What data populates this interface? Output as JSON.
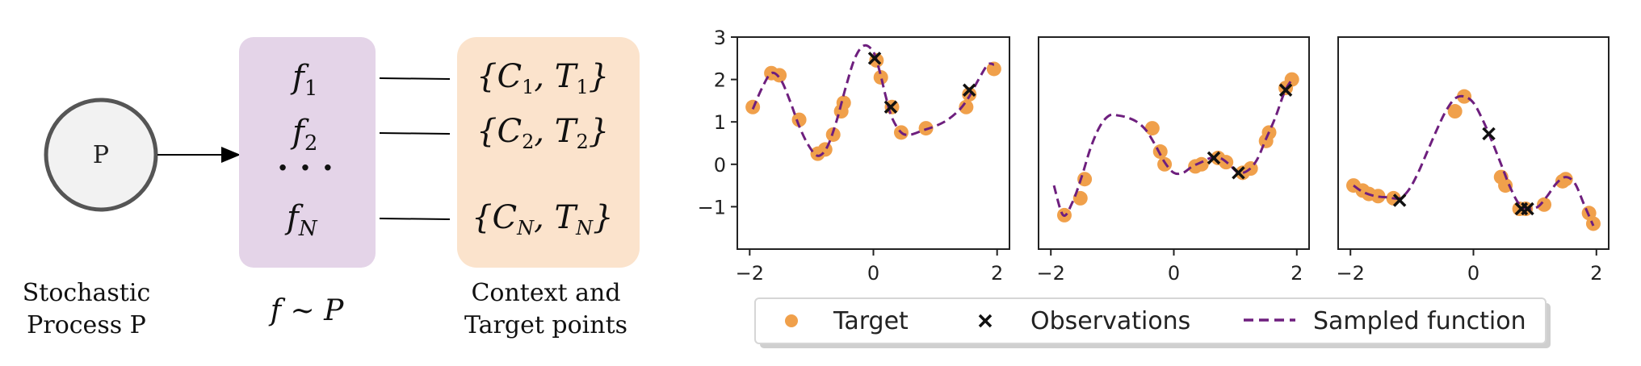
{
  "diagram": {
    "process_circle": {
      "label": "P",
      "caption_line1": "Stochastic",
      "caption_line2": "Process P"
    },
    "function_box": {
      "items": [
        {
          "base": "f",
          "sub": "1"
        },
        {
          "base": "f",
          "sub": "2"
        },
        {
          "base": "f",
          "sub": "N"
        }
      ],
      "dots": "· · ·",
      "caption": "f ∼ P"
    },
    "context_box": {
      "items": [
        {
          "text": "{C",
          "sub1": "1",
          "mid": ", T",
          "sub2": "1",
          "end": "}"
        },
        {
          "text": "{C",
          "sub1": "2",
          "mid": ", T",
          "sub2": "2",
          "end": "}"
        },
        {
          "text": "{C",
          "sub1": "N",
          "mid": ", T",
          "sub2": "N",
          "end": "}"
        }
      ],
      "caption_line1": "Context and",
      "caption_line2": "Target points"
    },
    "colors": {
      "circle_fill": "#f2f2f2",
      "circle_stroke": "#555555",
      "function_box_fill": "#e4d4e8",
      "context_box_fill": "#fbe3cc"
    }
  },
  "chart_data": [
    {
      "type": "scatter",
      "xlim": [
        -2.2,
        2.2
      ],
      "ylim": [
        -2.0,
        3.0
      ],
      "xticks": [
        -2,
        0,
        2
      ],
      "yticks": [
        3,
        2,
        1,
        0,
        -1
      ],
      "sampled_function": [
        [
          -1.95,
          1.3
        ],
        [
          -1.8,
          1.8
        ],
        [
          -1.65,
          2.15
        ],
        [
          -1.5,
          2.0
        ],
        [
          -1.35,
          1.5
        ],
        [
          -1.2,
          0.9
        ],
        [
          -1.05,
          0.45
        ],
        [
          -0.9,
          0.2
        ],
        [
          -0.75,
          0.4
        ],
        [
          -0.6,
          1.0
        ],
        [
          -0.45,
          1.8
        ],
        [
          -0.3,
          2.5
        ],
        [
          -0.15,
          2.8
        ],
        [
          0.0,
          2.65
        ],
        [
          0.1,
          2.2
        ],
        [
          0.2,
          1.6
        ],
        [
          0.3,
          1.1
        ],
        [
          0.45,
          0.75
        ],
        [
          0.6,
          0.7
        ],
        [
          0.8,
          0.8
        ],
        [
          1.0,
          0.9
        ],
        [
          1.2,
          1.05
        ],
        [
          1.4,
          1.3
        ],
        [
          1.55,
          1.6
        ],
        [
          1.7,
          2.0
        ],
        [
          1.85,
          2.35
        ],
        [
          1.95,
          2.35
        ]
      ],
      "targets": [
        [
          -1.95,
          1.35
        ],
        [
          -1.65,
          2.15
        ],
        [
          -1.52,
          2.1
        ],
        [
          -1.2,
          1.05
        ],
        [
          -0.9,
          0.25
        ],
        [
          -0.78,
          0.35
        ],
        [
          -0.65,
          0.7
        ],
        [
          -0.52,
          1.25
        ],
        [
          -0.48,
          1.45
        ],
        [
          0.05,
          2.45
        ],
        [
          0.12,
          2.05
        ],
        [
          0.3,
          1.35
        ],
        [
          0.45,
          0.75
        ],
        [
          0.85,
          0.85
        ],
        [
          1.5,
          1.35
        ],
        [
          1.55,
          1.65
        ],
        [
          1.95,
          2.25
        ]
      ],
      "observations": [
        [
          0.02,
          2.5
        ],
        [
          0.28,
          1.35
        ],
        [
          1.55,
          1.75
        ]
      ]
    },
    {
      "type": "scatter",
      "xlim": [
        -2.2,
        2.2
      ],
      "ylim": [
        -2.0,
        3.0
      ],
      "xticks": [
        -2,
        0,
        2
      ],
      "yticks": [],
      "sampled_function": [
        [
          -1.95,
          -0.5
        ],
        [
          -1.8,
          -1.2
        ],
        [
          -1.65,
          -0.9
        ],
        [
          -1.5,
          -0.3
        ],
        [
          -1.35,
          0.4
        ],
        [
          -1.2,
          0.9
        ],
        [
          -1.05,
          1.15
        ],
        [
          -0.9,
          1.15
        ],
        [
          -0.75,
          1.1
        ],
        [
          -0.6,
          1.0
        ],
        [
          -0.45,
          0.8
        ],
        [
          -0.3,
          0.45
        ],
        [
          -0.15,
          0.05
        ],
        [
          0.0,
          -0.2
        ],
        [
          0.15,
          -0.2
        ],
        [
          0.3,
          -0.05
        ],
        [
          0.45,
          0.05
        ],
        [
          0.6,
          0.15
        ],
        [
          0.75,
          0.15
        ],
        [
          0.9,
          0.0
        ],
        [
          1.05,
          -0.2
        ],
        [
          1.2,
          -0.15
        ],
        [
          1.35,
          0.1
        ],
        [
          1.5,
          0.6
        ],
        [
          1.65,
          1.1
        ],
        [
          1.8,
          1.7
        ],
        [
          1.92,
          2.0
        ]
      ],
      "targets": [
        [
          -1.78,
          -1.2
        ],
        [
          -1.52,
          -0.8
        ],
        [
          -1.45,
          -0.35
        ],
        [
          -0.35,
          0.85
        ],
        [
          -0.22,
          0.3
        ],
        [
          -0.15,
          0.0
        ],
        [
          0.35,
          -0.05
        ],
        [
          0.45,
          0.0
        ],
        [
          0.72,
          0.15
        ],
        [
          0.85,
          0.05
        ],
        [
          1.12,
          -0.2
        ],
        [
          1.25,
          -0.1
        ],
        [
          1.5,
          0.55
        ],
        [
          1.55,
          0.75
        ],
        [
          1.82,
          1.8
        ],
        [
          1.92,
          2.0
        ]
      ],
      "observations": [
        [
          0.65,
          0.15
        ],
        [
          1.05,
          -0.2
        ],
        [
          1.82,
          1.75
        ]
      ]
    },
    {
      "type": "scatter",
      "xlim": [
        -2.2,
        2.2
      ],
      "ylim": [
        -2.0,
        3.0
      ],
      "xticks": [
        -2,
        0,
        2
      ],
      "yticks": [],
      "sampled_function": [
        [
          -1.95,
          -0.5
        ],
        [
          -1.8,
          -0.65
        ],
        [
          -1.6,
          -0.75
        ],
        [
          -1.4,
          -0.78
        ],
        [
          -1.2,
          -0.8
        ],
        [
          -1.05,
          -0.6
        ],
        [
          -0.9,
          -0.2
        ],
        [
          -0.75,
          0.3
        ],
        [
          -0.6,
          0.8
        ],
        [
          -0.45,
          1.25
        ],
        [
          -0.3,
          1.55
        ],
        [
          -0.15,
          1.6
        ],
        [
          0.0,
          1.45
        ],
        [
          0.15,
          1.05
        ],
        [
          0.3,
          0.55
        ],
        [
          0.45,
          0.0
        ],
        [
          0.6,
          -0.55
        ],
        [
          0.75,
          -0.95
        ],
        [
          0.9,
          -1.05
        ],
        [
          1.05,
          -1.0
        ],
        [
          1.2,
          -0.75
        ],
        [
          1.35,
          -0.45
        ],
        [
          1.5,
          -0.3
        ],
        [
          1.65,
          -0.45
        ],
        [
          1.8,
          -0.95
        ],
        [
          1.95,
          -1.45
        ]
      ],
      "targets": [
        [
          -1.95,
          -0.5
        ],
        [
          -1.8,
          -0.62
        ],
        [
          -1.7,
          -0.7
        ],
        [
          -1.55,
          -0.75
        ],
        [
          -1.3,
          -0.8
        ],
        [
          -0.3,
          1.25
        ],
        [
          -0.15,
          1.6
        ],
        [
          0.45,
          -0.3
        ],
        [
          0.52,
          -0.5
        ],
        [
          0.75,
          -1.05
        ],
        [
          0.85,
          -1.05
        ],
        [
          1.15,
          -0.95
        ],
        [
          1.45,
          -0.4
        ],
        [
          1.5,
          -0.35
        ],
        [
          1.88,
          -1.15
        ],
        [
          1.95,
          -1.4
        ]
      ],
      "observations": [
        [
          -1.2,
          -0.85
        ],
        [
          0.25,
          0.72
        ],
        [
          0.78,
          -1.05
        ],
        [
          0.88,
          -1.05
        ]
      ]
    }
  ],
  "legend": {
    "items": [
      {
        "label": "Target",
        "marker": "circle"
      },
      {
        "label": "Observations",
        "marker": "x"
      },
      {
        "label": "Sampled function",
        "marker": "dashed-line"
      }
    ],
    "colors": {
      "target": "#f0a04b",
      "observation": "#111111",
      "function": "#6e1f7e"
    }
  }
}
